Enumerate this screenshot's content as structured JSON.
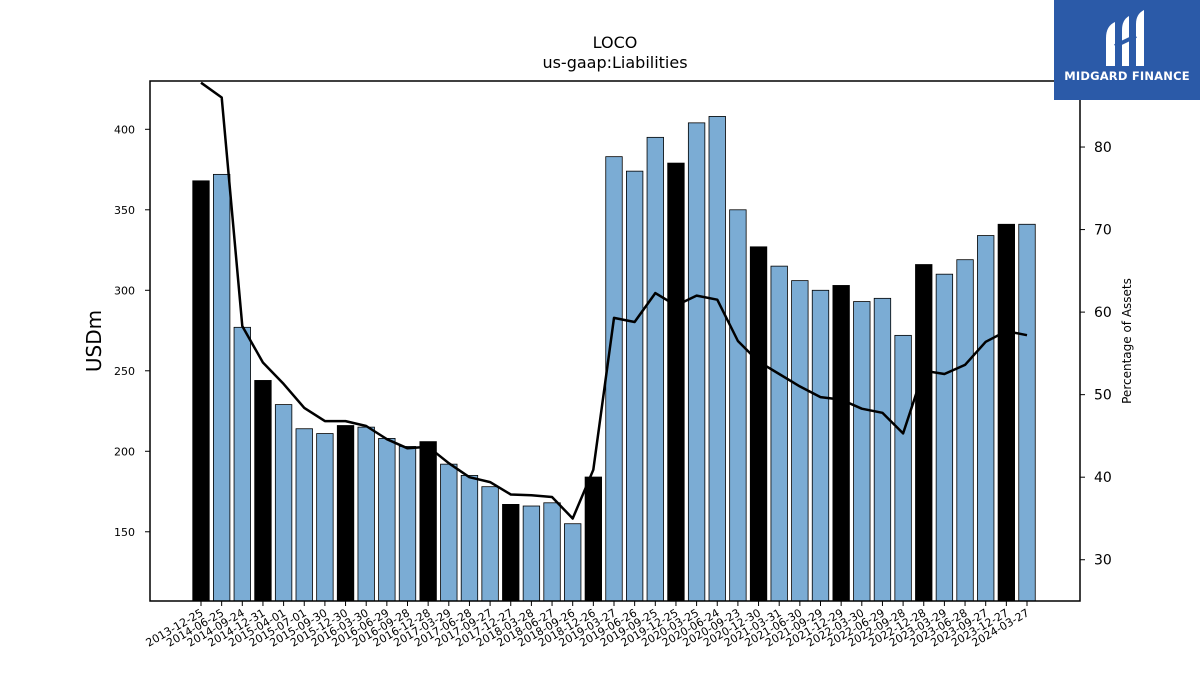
{
  "chart_data": {
    "type": "bar",
    "title": "LOCO",
    "subtitle": "us-gaap:Liabilities",
    "ylabel": "USDm",
    "y2label": "Percentage of Assets",
    "ylim": [
      107,
      430
    ],
    "y2lim": [
      25,
      88
    ],
    "yticks": [
      150,
      200,
      250,
      300,
      350,
      400
    ],
    "y2ticks": [
      30,
      40,
      50,
      60,
      70,
      80
    ],
    "categories": [
      "2013-12-25",
      "2014-06-25",
      "2014-09-24",
      "2014-12-31",
      "2015-04-01",
      "2015-07-01",
      "2015-09-30",
      "2015-12-30",
      "2016-03-30",
      "2016-06-29",
      "2016-09-28",
      "2016-12-28",
      "2017-03-29",
      "2017-06-28",
      "2017-09-27",
      "2017-12-27",
      "2018-03-28",
      "2018-06-27",
      "2018-09-26",
      "2018-12-26",
      "2019-03-27",
      "2019-06-26",
      "2019-09-25",
      "2019-12-25",
      "2020-03-25",
      "2020-06-24",
      "2020-09-23",
      "2020-12-30",
      "2021-03-31",
      "2021-06-30",
      "2021-09-29",
      "2021-12-29",
      "2022-03-30",
      "2022-06-29",
      "2022-09-28",
      "2022-12-28",
      "2023-03-29",
      "2023-06-28",
      "2023-09-27",
      "2023-12-27",
      "2024-03-27"
    ],
    "series": [
      {
        "values": [
          368,
          372,
          277,
          244,
          229,
          214,
          211,
          216,
          215,
          208,
          203,
          206,
          192,
          185,
          178,
          167,
          166,
          168,
          155,
          184,
          383,
          374,
          395,
          379,
          404,
          408,
          350,
          327,
          315,
          306,
          300,
          303,
          293,
          295,
          272,
          316,
          310,
          319,
          334,
          341,
          341
        ],
        "highlight": [
          true,
          false,
          false,
          true,
          false,
          false,
          false,
          true,
          false,
          false,
          false,
          true,
          false,
          false,
          false,
          true,
          false,
          false,
          false,
          true,
          false,
          false,
          false,
          true,
          false,
          false,
          false,
          true,
          false,
          false,
          false,
          true,
          false,
          false,
          false,
          true,
          false,
          false,
          false,
          true,
          false
        ]
      },
      {
        "axis": "right",
        "type": "line",
        "values": [
          87.8,
          86.0,
          58.3,
          53.9,
          51.3,
          48.4,
          46.8,
          46.8,
          46.2,
          44.6,
          43.5,
          43.7,
          41.7,
          40.0,
          39.4,
          37.9,
          37.8,
          37.6,
          35.0,
          40.9,
          59.3,
          58.8,
          62.3,
          60.8,
          62.0,
          61.5,
          56.5,
          54.0,
          52.5,
          51.0,
          49.7,
          49.4,
          48.3,
          47.8,
          45.3,
          52.9,
          52.5,
          53.6,
          56.4,
          57.7,
          57.2
        ]
      }
    ],
    "colors": {
      "bar": "#7bacd4",
      "bar_highlight": "#000000",
      "line": "#000000"
    }
  },
  "logo": {
    "text": "MIDGARD FINANCE",
    "bg": "#2b5aa8"
  }
}
